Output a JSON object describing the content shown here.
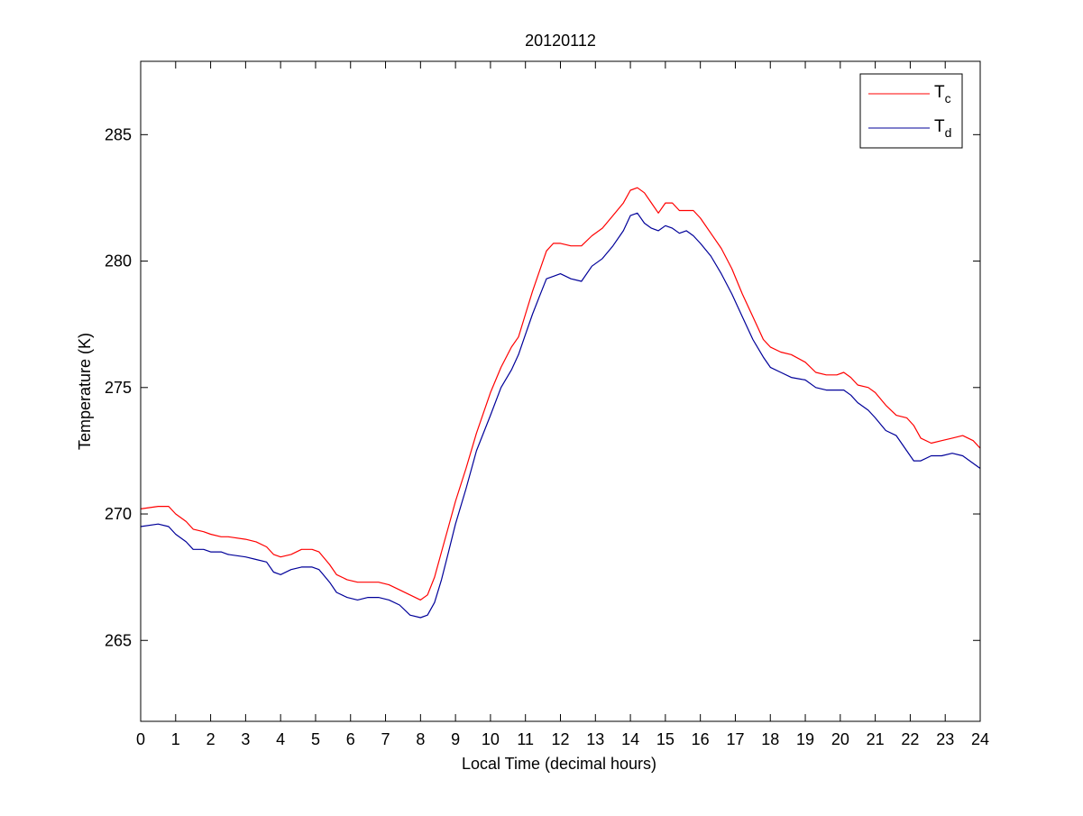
{
  "chart_data": {
    "type": "line",
    "title": "20120112",
    "xlabel": "Local Time (decimal hours)",
    "ylabel": "Temperature (K)",
    "xlim": [
      0,
      24
    ],
    "ylim": [
      261.8,
      287.9
    ],
    "xticks": [
      0,
      1,
      2,
      3,
      4,
      5,
      6,
      7,
      8,
      9,
      10,
      11,
      12,
      13,
      14,
      15,
      16,
      17,
      18,
      19,
      20,
      21,
      22,
      23,
      24
    ],
    "xtick_labels": [
      "0",
      "1",
      "2",
      "3",
      "4",
      "5",
      "6",
      "7",
      "8",
      "9",
      "10",
      "11",
      "12",
      "13",
      "14",
      "15",
      "16",
      "17",
      "18",
      "19",
      "20",
      "21",
      "22",
      "23",
      "24"
    ],
    "yticks": [
      265,
      270,
      275,
      280,
      285
    ],
    "ytick_labels": [
      "265",
      "270",
      "275",
      "280",
      "285"
    ],
    "grid": false,
    "legend_position": "top-right",
    "series": [
      {
        "name": "T_c",
        "legend_main": "T",
        "legend_sub": "c",
        "color": "#ff0000",
        "x": [
          0,
          0.5,
          0.8,
          1,
          1.3,
          1.5,
          1.8,
          2,
          2.3,
          2.5,
          3,
          3.3,
          3.6,
          3.8,
          4,
          4.3,
          4.6,
          4.9,
          5.1,
          5.4,
          5.6,
          5.9,
          6.2,
          6.5,
          6.8,
          7.1,
          7.4,
          7.7,
          8,
          8.2,
          8.4,
          8.6,
          8.8,
          9,
          9.3,
          9.6,
          10,
          10.3,
          10.6,
          10.8,
          11,
          11.2,
          11.4,
          11.6,
          11.8,
          12,
          12.3,
          12.6,
          12.9,
          13.2,
          13.5,
          13.8,
          14,
          14.2,
          14.4,
          14.6,
          14.8,
          15,
          15.2,
          15.4,
          15.6,
          15.8,
          16,
          16.3,
          16.6,
          16.9,
          17.2,
          17.5,
          17.8,
          18,
          18.3,
          18.6,
          19,
          19.3,
          19.6,
          19.9,
          20.1,
          20.3,
          20.5,
          20.8,
          21,
          21.3,
          21.6,
          21.9,
          22.1,
          22.3,
          22.6,
          22.9,
          23.2,
          23.5,
          23.8,
          24
        ],
        "y": [
          270.2,
          270.3,
          270.3,
          270.0,
          269.7,
          269.4,
          269.3,
          269.2,
          269.1,
          269.1,
          269.0,
          268.9,
          268.7,
          268.4,
          268.3,
          268.4,
          268.6,
          268.6,
          268.5,
          268.0,
          267.6,
          267.4,
          267.3,
          267.3,
          267.3,
          267.2,
          267.0,
          266.8,
          266.6,
          266.8,
          267.5,
          268.5,
          269.5,
          270.5,
          271.8,
          273.2,
          274.8,
          275.8,
          276.6,
          277.0,
          277.9,
          278.8,
          279.6,
          280.4,
          280.7,
          280.7,
          280.6,
          280.6,
          281.0,
          281.3,
          281.8,
          282.3,
          282.8,
          282.9,
          282.7,
          282.3,
          281.9,
          282.3,
          282.3,
          282.0,
          282.0,
          282.0,
          281.7,
          281.1,
          280.5,
          279.7,
          278.7,
          277.8,
          276.9,
          276.6,
          276.4,
          276.3,
          276.0,
          275.6,
          275.5,
          275.5,
          275.6,
          275.4,
          275.1,
          275.0,
          274.8,
          274.3,
          273.9,
          273.8,
          273.5,
          273.0,
          272.8,
          272.9,
          273.0,
          273.1,
          272.9,
          272.6
        ]
      },
      {
        "name": "T_d",
        "legend_main": "T",
        "legend_sub": "d",
        "color": "#000099",
        "x": [
          0,
          0.5,
          0.8,
          1,
          1.3,
          1.5,
          1.8,
          2,
          2.3,
          2.5,
          3,
          3.3,
          3.6,
          3.8,
          4,
          4.3,
          4.6,
          4.9,
          5.1,
          5.4,
          5.6,
          5.9,
          6.2,
          6.5,
          6.8,
          7.1,
          7.4,
          7.7,
          8,
          8.2,
          8.4,
          8.6,
          8.8,
          9,
          9.3,
          9.6,
          10,
          10.3,
          10.6,
          10.8,
          11,
          11.2,
          11.4,
          11.6,
          11.8,
          12,
          12.3,
          12.6,
          12.9,
          13.2,
          13.5,
          13.8,
          14,
          14.2,
          14.4,
          14.6,
          14.8,
          15,
          15.2,
          15.4,
          15.6,
          15.8,
          16,
          16.3,
          16.6,
          16.9,
          17.2,
          17.5,
          17.8,
          18,
          18.3,
          18.6,
          19,
          19.3,
          19.6,
          19.9,
          20.1,
          20.3,
          20.5,
          20.8,
          21,
          21.3,
          21.6,
          21.9,
          22.1,
          22.3,
          22.6,
          22.9,
          23.2,
          23.5,
          23.8,
          24
        ],
        "y": [
          269.5,
          269.6,
          269.5,
          269.2,
          268.9,
          268.6,
          268.6,
          268.5,
          268.5,
          268.4,
          268.3,
          268.2,
          268.1,
          267.7,
          267.6,
          267.8,
          267.9,
          267.9,
          267.8,
          267.3,
          266.9,
          266.7,
          266.6,
          266.7,
          266.7,
          266.6,
          266.4,
          266.0,
          265.9,
          266.0,
          266.5,
          267.4,
          268.5,
          269.6,
          271.0,
          272.5,
          273.9,
          275.0,
          275.7,
          276.3,
          277.1,
          277.9,
          278.6,
          279.3,
          279.4,
          279.5,
          279.3,
          279.2,
          279.8,
          280.1,
          280.6,
          281.2,
          281.8,
          281.9,
          281.5,
          281.3,
          281.2,
          281.4,
          281.3,
          281.1,
          281.2,
          281.0,
          280.7,
          280.2,
          279.5,
          278.7,
          277.8,
          276.9,
          276.2,
          275.8,
          275.6,
          275.4,
          275.3,
          275.0,
          274.9,
          274.9,
          274.9,
          274.7,
          274.4,
          274.1,
          273.8,
          273.3,
          273.1,
          272.5,
          272.1,
          272.1,
          272.3,
          272.3,
          272.4,
          272.3,
          272.0,
          271.8
        ]
      }
    ]
  }
}
